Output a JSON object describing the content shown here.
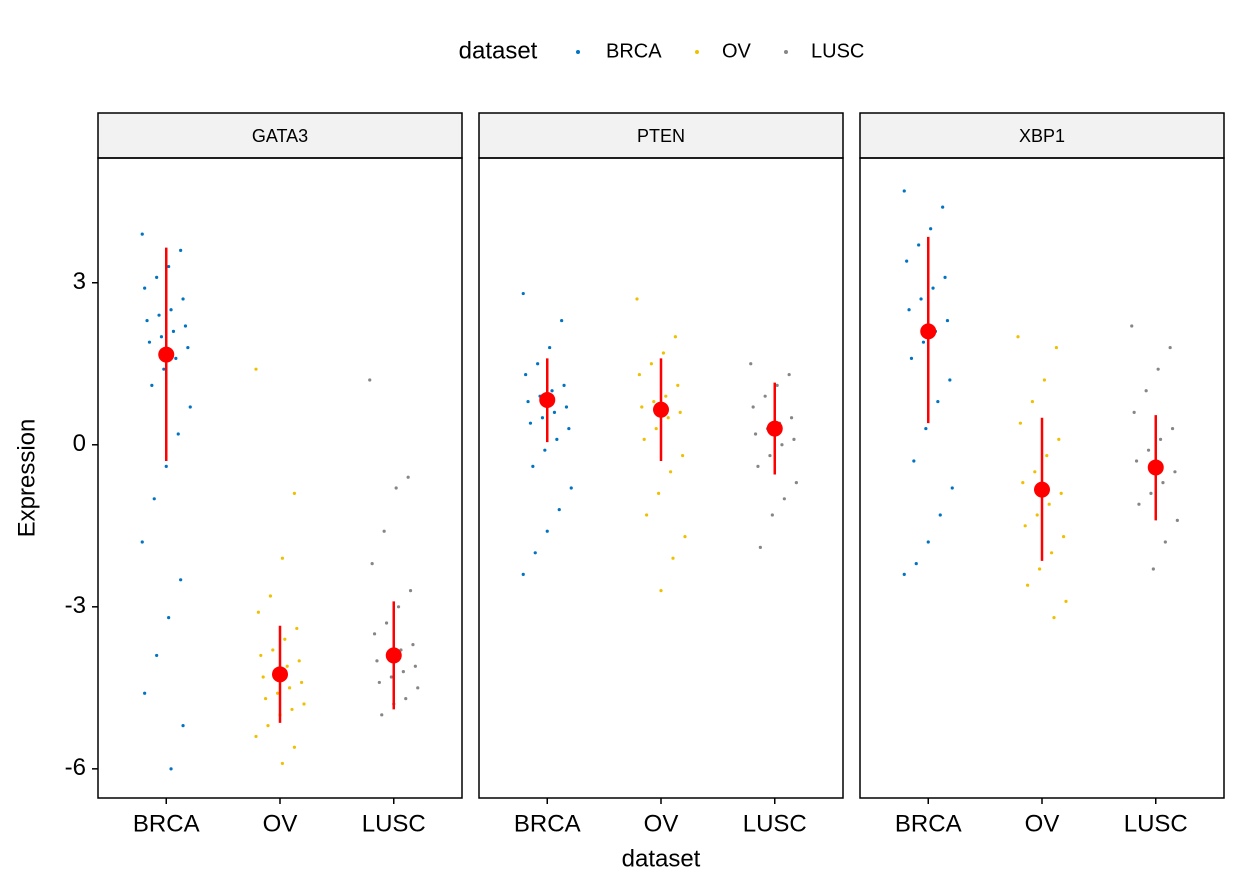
{
  "chart_data": {
    "type": "strip",
    "legend_title": "dataset",
    "x_label": "dataset",
    "y_label": "Expression",
    "categories": [
      "BRCA",
      "OV",
      "LUSC"
    ],
    "series": [
      {
        "name": "BRCA",
        "color": "#0073C2"
      },
      {
        "name": "OV",
        "color": "#EFC000"
      },
      {
        "name": "LUSC",
        "color": "#868686"
      }
    ],
    "summary_color": "#FF0000",
    "ylim": [
      -6.54,
      5.31
    ],
    "yticks": [
      -6,
      -3,
      0,
      3
    ],
    "legend_position": "top",
    "facets": [
      {
        "name": "GATA3",
        "groups": [
          {
            "mean": 1.67,
            "ymin": -0.3,
            "ymax": 3.65,
            "points": [
              3.9,
              3.6,
              3.3,
              3.1,
              2.9,
              2.7,
              2.5,
              2.4,
              2.3,
              2.2,
              2.1,
              2.0,
              1.9,
              1.8,
              1.6,
              1.4,
              1.1,
              0.7,
              0.2,
              -0.4,
              -1.0,
              -1.8,
              -2.5,
              -3.2,
              -3.9,
              -4.6,
              -5.2,
              -6.0
            ]
          },
          {
            "mean": -4.25,
            "ymin": -5.15,
            "ymax": -3.35,
            "points": [
              1.4,
              -0.9,
              -2.1,
              -2.8,
              -3.1,
              -3.4,
              -3.6,
              -3.8,
              -3.9,
              -4.0,
              -4.1,
              -4.2,
              -4.3,
              -4.4,
              -4.5,
              -4.6,
              -4.7,
              -4.8,
              -4.9,
              -5.0,
              -5.2,
              -5.4,
              -5.6,
              -5.9
            ]
          },
          {
            "mean": -3.9,
            "ymin": -4.9,
            "ymax": -2.9,
            "points": [
              1.2,
              -0.6,
              -0.8,
              -1.6,
              -2.2,
              -2.7,
              -3.0,
              -3.3,
              -3.5,
              -3.7,
              -3.8,
              -3.9,
              -4.0,
              -4.1,
              -4.2,
              -4.3,
              -4.4,
              -4.5,
              -4.7,
              -4.8,
              -5.0
            ]
          }
        ]
      },
      {
        "name": "PTEN",
        "groups": [
          {
            "mean": 0.83,
            "ymin": 0.05,
            "ymax": 1.6,
            "points": [
              2.8,
              2.3,
              1.8,
              1.5,
              1.3,
              1.1,
              1.0,
              0.9,
              0.8,
              0.7,
              0.6,
              0.5,
              0.4,
              0.3,
              0.1,
              -0.1,
              -0.4,
              -0.8,
              -1.2,
              -1.6,
              -2.0,
              -2.4
            ]
          },
          {
            "mean": 0.65,
            "ymin": -0.3,
            "ymax": 1.6,
            "points": [
              2.7,
              2.0,
              1.7,
              1.5,
              1.3,
              1.1,
              0.9,
              0.8,
              0.7,
              0.6,
              0.5,
              0.3,
              0.1,
              -0.2,
              -0.5,
              -0.9,
              -1.3,
              -1.7,
              -2.1,
              -2.7
            ]
          },
          {
            "mean": 0.3,
            "ymin": -0.55,
            "ymax": 1.15,
            "points": [
              1.5,
              1.3,
              1.1,
              0.9,
              0.7,
              0.5,
              0.4,
              0.3,
              0.2,
              0.1,
              0,
              -0.2,
              -0.4,
              -0.7,
              -1.0,
              -1.3,
              -1.9
            ]
          }
        ]
      },
      {
        "name": "XBP1",
        "groups": [
          {
            "mean": 2.1,
            "ymin": 0.4,
            "ymax": 3.85,
            "points": [
              4.7,
              4.4,
              4.0,
              3.7,
              3.4,
              3.1,
              2.9,
              2.7,
              2.5,
              2.3,
              2.1,
              1.9,
              1.6,
              1.2,
              0.8,
              0.3,
              -0.3,
              -0.8,
              -1.3,
              -1.8,
              -2.2,
              -2.4
            ]
          },
          {
            "mean": -0.83,
            "ymin": -2.15,
            "ymax": 0.5,
            "points": [
              2.0,
              1.8,
              1.2,
              0.8,
              0.4,
              0.1,
              -0.2,
              -0.5,
              -0.7,
              -0.9,
              -1.1,
              -1.3,
              -1.5,
              -1.7,
              -2.0,
              -2.3,
              -2.6,
              -2.9,
              -3.2
            ]
          },
          {
            "mean": -0.42,
            "ymin": -1.4,
            "ymax": 0.55,
            "points": [
              2.2,
              1.8,
              1.4,
              1.0,
              0.6,
              0.3,
              0.1,
              -0.1,
              -0.3,
              -0.5,
              -0.7,
              -0.9,
              -1.1,
              -1.4,
              -1.8,
              -2.3
            ]
          }
        ]
      }
    ]
  }
}
